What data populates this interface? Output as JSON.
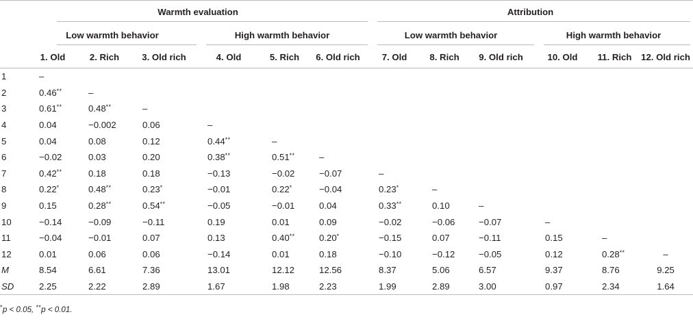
{
  "table": {
    "group_headers": [
      "Warmth evaluation",
      "Attribution"
    ],
    "subgroup_headers": [
      "Low warmth behavior",
      "High warmth behavior",
      "Low warmth behavior",
      "High warmth behavior"
    ],
    "column_headers": [
      "1. Old",
      "2. Rich",
      "3. Old rich",
      "4. Old",
      "5. Rich",
      "6. Old rich",
      "7. Old",
      "8. Rich",
      "9. Old rich",
      "10. Old",
      "11. Rich",
      "12. Old rich"
    ],
    "rows": [
      {
        "label": "1",
        "cells": [
          {
            "v": "–",
            "s": ""
          }
        ]
      },
      {
        "label": "2",
        "cells": [
          {
            "v": "0.46",
            "s": "**"
          },
          {
            "v": "–",
            "s": ""
          }
        ]
      },
      {
        "label": "3",
        "cells": [
          {
            "v": "0.61",
            "s": "**"
          },
          {
            "v": "0.48",
            "s": "**"
          },
          {
            "v": "–",
            "s": ""
          }
        ]
      },
      {
        "label": "4",
        "cells": [
          {
            "v": "0.04",
            "s": ""
          },
          {
            "v": "−0.002",
            "s": ""
          },
          {
            "v": "0.06",
            "s": ""
          },
          {
            "v": "–",
            "s": ""
          }
        ]
      },
      {
        "label": "5",
        "cells": [
          {
            "v": "0.04",
            "s": ""
          },
          {
            "v": "0.08",
            "s": ""
          },
          {
            "v": "0.12",
            "s": ""
          },
          {
            "v": "0.44",
            "s": "**"
          },
          {
            "v": "–",
            "s": ""
          }
        ]
      },
      {
        "label": "6",
        "cells": [
          {
            "v": "−0.02",
            "s": ""
          },
          {
            "v": "0.03",
            "s": ""
          },
          {
            "v": "0.20",
            "s": ""
          },
          {
            "v": "0.38",
            "s": "**"
          },
          {
            "v": "0.51",
            "s": "**"
          },
          {
            "v": "–",
            "s": ""
          }
        ]
      },
      {
        "label": "7",
        "cells": [
          {
            "v": "0.42",
            "s": "**"
          },
          {
            "v": "0.18",
            "s": ""
          },
          {
            "v": "0.18",
            "s": ""
          },
          {
            "v": "−0.13",
            "s": ""
          },
          {
            "v": "−0.02",
            "s": ""
          },
          {
            "v": "−0.07",
            "s": ""
          },
          {
            "v": "–",
            "s": ""
          }
        ]
      },
      {
        "label": "8",
        "cells": [
          {
            "v": "0.22",
            "s": "*"
          },
          {
            "v": "0.48",
            "s": "**"
          },
          {
            "v": "0.23",
            "s": "*"
          },
          {
            "v": "−0.01",
            "s": ""
          },
          {
            "v": "0.22",
            "s": "*"
          },
          {
            "v": "−0.04",
            "s": ""
          },
          {
            "v": "0.23",
            "s": "*"
          },
          {
            "v": "–",
            "s": ""
          }
        ]
      },
      {
        "label": "9",
        "cells": [
          {
            "v": "0.15",
            "s": ""
          },
          {
            "v": "0.28",
            "s": "**"
          },
          {
            "v": "0.54",
            "s": "**"
          },
          {
            "v": "−0.05",
            "s": ""
          },
          {
            "v": "−0.01",
            "s": ""
          },
          {
            "v": "0.04",
            "s": ""
          },
          {
            "v": "0.33",
            "s": "**"
          },
          {
            "v": "0.10",
            "s": ""
          },
          {
            "v": "–",
            "s": ""
          }
        ]
      },
      {
        "label": "10",
        "cells": [
          {
            "v": "−0.14",
            "s": ""
          },
          {
            "v": "−0.09",
            "s": ""
          },
          {
            "v": "−0.11",
            "s": ""
          },
          {
            "v": "0.19",
            "s": ""
          },
          {
            "v": "0.01",
            "s": ""
          },
          {
            "v": "0.09",
            "s": ""
          },
          {
            "v": "−0.02",
            "s": ""
          },
          {
            "v": "−0.06",
            "s": ""
          },
          {
            "v": "−0.07",
            "s": ""
          },
          {
            "v": "–",
            "s": ""
          }
        ]
      },
      {
        "label": "11",
        "cells": [
          {
            "v": "−0.04",
            "s": ""
          },
          {
            "v": "−0.01",
            "s": ""
          },
          {
            "v": "0.07",
            "s": ""
          },
          {
            "v": "0.13",
            "s": ""
          },
          {
            "v": "0.40",
            "s": "**"
          },
          {
            "v": "0.20",
            "s": "*"
          },
          {
            "v": "−0.15",
            "s": ""
          },
          {
            "v": "0.07",
            "s": ""
          },
          {
            "v": "−0.11",
            "s": ""
          },
          {
            "v": "0.15",
            "s": ""
          },
          {
            "v": "–",
            "s": ""
          }
        ]
      },
      {
        "label": "12",
        "cells": [
          {
            "v": "0.01",
            "s": ""
          },
          {
            "v": "0.06",
            "s": ""
          },
          {
            "v": "0.06",
            "s": ""
          },
          {
            "v": "−0.14",
            "s": ""
          },
          {
            "v": "0.01",
            "s": ""
          },
          {
            "v": "0.18",
            "s": ""
          },
          {
            "v": "−0.10",
            "s": ""
          },
          {
            "v": "−0.12",
            "s": ""
          },
          {
            "v": "−0.05",
            "s": ""
          },
          {
            "v": "0.12",
            "s": ""
          },
          {
            "v": "0.28",
            "s": "**"
          },
          {
            "v": "–",
            "s": ""
          }
        ]
      },
      {
        "label": "M",
        "italic": true,
        "cells": [
          {
            "v": "8.54",
            "s": ""
          },
          {
            "v": "6.61",
            "s": ""
          },
          {
            "v": "7.36",
            "s": ""
          },
          {
            "v": "13.01",
            "s": ""
          },
          {
            "v": "12.12",
            "s": ""
          },
          {
            "v": "12.56",
            "s": ""
          },
          {
            "v": "8.37",
            "s": ""
          },
          {
            "v": "5.06",
            "s": ""
          },
          {
            "v": "6.57",
            "s": ""
          },
          {
            "v": "9.37",
            "s": ""
          },
          {
            "v": "8.76",
            "s": ""
          },
          {
            "v": "9.25",
            "s": ""
          }
        ]
      },
      {
        "label": "SD",
        "italic": true,
        "cells": [
          {
            "v": "2.25",
            "s": ""
          },
          {
            "v": "2.22",
            "s": ""
          },
          {
            "v": "2.89",
            "s": ""
          },
          {
            "v": "1.67",
            "s": ""
          },
          {
            "v": "1.98",
            "s": ""
          },
          {
            "v": "2.23",
            "s": ""
          },
          {
            "v": "1.99",
            "s": ""
          },
          {
            "v": "2.89",
            "s": ""
          },
          {
            "v": "3.00",
            "s": ""
          },
          {
            "v": "0.97",
            "s": ""
          },
          {
            "v": "2.34",
            "s": ""
          },
          {
            "v": "1.64",
            "s": ""
          }
        ]
      }
    ]
  },
  "footnote": {
    "star1": "*",
    "text1": "p < 0.05, ",
    "star2": "**",
    "text2": "p < 0.01."
  }
}
